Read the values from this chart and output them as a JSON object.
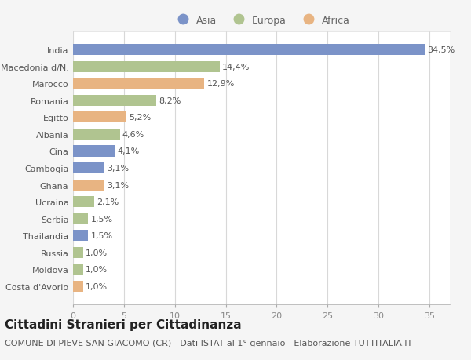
{
  "categories": [
    "India",
    "Macedonia d/N.",
    "Marocco",
    "Romania",
    "Egitto",
    "Albania",
    "Cina",
    "Cambogia",
    "Ghana",
    "Ucraina",
    "Serbia",
    "Thailandia",
    "Russia",
    "Moldova",
    "Costa d'Avorio"
  ],
  "values": [
    34.5,
    14.4,
    12.9,
    8.2,
    5.2,
    4.6,
    4.1,
    3.1,
    3.1,
    2.1,
    1.5,
    1.5,
    1.0,
    1.0,
    1.0
  ],
  "labels": [
    "34,5%",
    "14,4%",
    "12,9%",
    "8,2%",
    "5,2%",
    "4,6%",
    "4,1%",
    "3,1%",
    "3,1%",
    "2,1%",
    "1,5%",
    "1,5%",
    "1,0%",
    "1,0%",
    "1,0%"
  ],
  "continents": [
    "Asia",
    "Europa",
    "Africa",
    "Europa",
    "Africa",
    "Europa",
    "Asia",
    "Asia",
    "Africa",
    "Europa",
    "Europa",
    "Asia",
    "Europa",
    "Europa",
    "Africa"
  ],
  "colors": {
    "Asia": "#7b93c8",
    "Europa": "#b0c490",
    "Africa": "#e8b482"
  },
  "legend_labels": [
    "Asia",
    "Europa",
    "Africa"
  ],
  "title": "Cittadini Stranieri per Cittadinanza",
  "subtitle": "COMUNE DI PIEVE SAN GIACOMO (CR) - Dati ISTAT al 1° gennaio - Elaborazione TUTTITALIA.IT",
  "xlim": [
    0,
    37
  ],
  "xticks": [
    0,
    5,
    10,
    15,
    20,
    25,
    30,
    35
  ],
  "background_color": "#f5f5f5",
  "plot_bg_color": "#ffffff",
  "grid_color": "#d8d8d8",
  "title_fontsize": 11,
  "subtitle_fontsize": 8,
  "label_fontsize": 8,
  "tick_fontsize": 8,
  "legend_fontsize": 9
}
